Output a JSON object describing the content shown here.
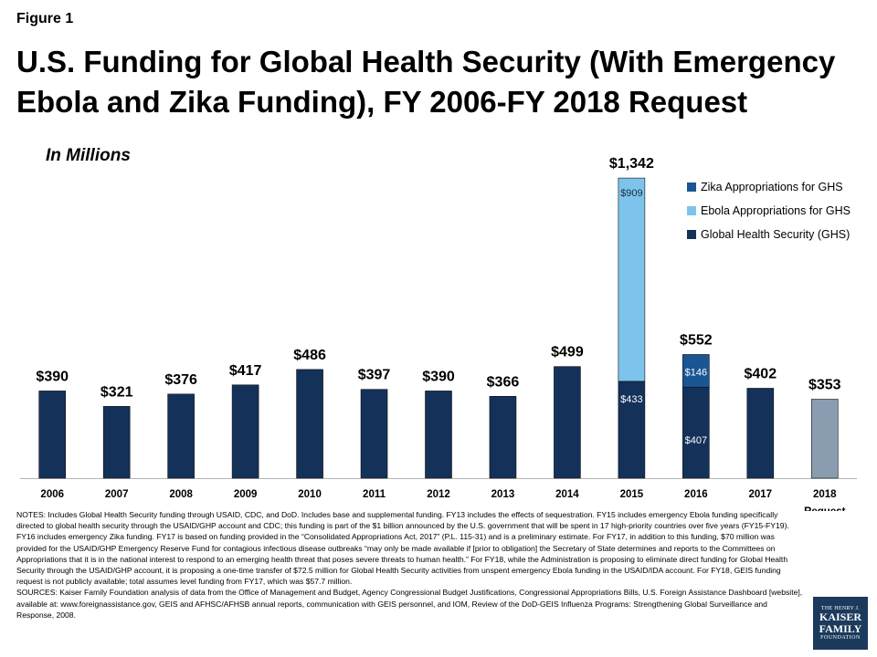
{
  "figure_label": "Figure 1",
  "chart_data": {
    "type": "bar",
    "stacked": true,
    "title": "U.S. Funding for Global Health Security (With Emergency Ebola and Zika Funding), FY 2006-FY 2018 Request",
    "units_label": "In Millions",
    "categories": [
      "2006",
      "2007",
      "2008",
      "2009",
      "2010",
      "2011",
      "2012",
      "2013",
      "2014",
      "2015",
      "2016",
      "2017",
      "2018"
    ],
    "category_sublabels": [
      "",
      "",
      "",
      "",
      "",
      "",
      "",
      "",
      "",
      "",
      "",
      "",
      "Request"
    ],
    "totals": [
      390,
      321,
      376,
      417,
      486,
      397,
      390,
      366,
      499,
      1342,
      552,
      402,
      353
    ],
    "total_labels": [
      "$390",
      "$321",
      "$376",
      "$417",
      "$486",
      "$397",
      "$390",
      "$366",
      "$499",
      "$1,342",
      "$552",
      "$402",
      "$353"
    ],
    "series": [
      {
        "name": "Global Health Security (GHS)",
        "color": "#14315a",
        "values": [
          390,
          321,
          376,
          417,
          486,
          397,
          390,
          366,
          499,
          433,
          407,
          402,
          353
        ],
        "segment_labels": [
          "",
          "",
          "",
          "",
          "",
          "",
          "",
          "",
          "",
          "$433",
          "$407",
          "",
          ""
        ]
      },
      {
        "name": "Ebola Appropriations for GHS",
        "color": "#7cc4ec",
        "values": [
          0,
          0,
          0,
          0,
          0,
          0,
          0,
          0,
          0,
          909,
          0,
          0,
          0
        ],
        "segment_labels": [
          "",
          "",
          "",
          "",
          "",
          "",
          "",
          "",
          "",
          "$909",
          "",
          "",
          ""
        ]
      },
      {
        "name": "Zika Appropriations for GHS",
        "color": "#1a5594",
        "values": [
          0,
          0,
          0,
          0,
          0,
          0,
          0,
          0,
          0,
          0,
          146,
          0,
          0
        ],
        "segment_labels": [
          "",
          "",
          "",
          "",
          "",
          "",
          "",
          "",
          "",
          "",
          "$146",
          "",
          ""
        ]
      }
    ],
    "highlight": {
      "category": "2018",
      "color": "#8a9cb0"
    },
    "legend_order": [
      "Zika Appropriations for GHS",
      "Ebola Appropriations for GHS",
      "Global Health Security (GHS)"
    ],
    "legend_colors": [
      "#1a5594",
      "#7cc4ec",
      "#14315a"
    ],
    "ylim": [
      0,
      1420
    ],
    "grid": false,
    "legend_position": "top-right"
  },
  "notes": "NOTES: Includes Global Health Security funding through USAID, CDC, and DoD. Includes base and supplemental funding. FY13 includes the effects of sequestration. FY15 includes emergency Ebola funding specifically directed to global health security through the USAID/GHP account and CDC; this funding is part of the $1 billion announced by the U.S. government that will be spent in 17 high-priority countries over five years (FY15-FY19). FY16 includes emergency Zika funding. FY17 is based on funding provided in the “Consolidated Appropriations Act, 2017” (P.L. 115-31) and is a preliminary estimate. For FY17, in addition to this funding, $70 million was provided for the USAID/GHP Emergency Reserve Fund for contagious infectious disease outbreaks “may only be made available if [prior to obligation] the Secretary of State determines and reports to the Committees on Appropriations that it is in the national interest to respond to an emerging health threat that poses severe threats to human health.” For FY18, while the Administration is proposing to eliminate direct funding for Global Health Security through the USAID/GHP account, it is proposing a one-time transfer of $72.5 million for Global Health Security activities from unspent emergency Ebola funding in the USAID/IDA account. For FY18, GEIS funding request is not publicly available; total assumes level funding from FY17, which was $57.7 million.",
  "sources": "SOURCES: Kaiser Family Foundation analysis of data from the Office of Management and Budget, Agency Congressional Budget Justifications, Congressional Appropriations Bills, U.S. Foreign Assistance Dashboard [website], available at: www.foreignassistance.gov, GEIS and AFHSC/AFHSB annual reports, communication with GEIS personnel, and IOM, Review of the DoD-GEIS Influenza Programs: Strengthening Global Surveillance and Response, 2008.",
  "logo": {
    "line1": "THE HENRY J.",
    "line2": "KAISER",
    "line3": "FAMILY",
    "line4": "FOUNDATION"
  }
}
